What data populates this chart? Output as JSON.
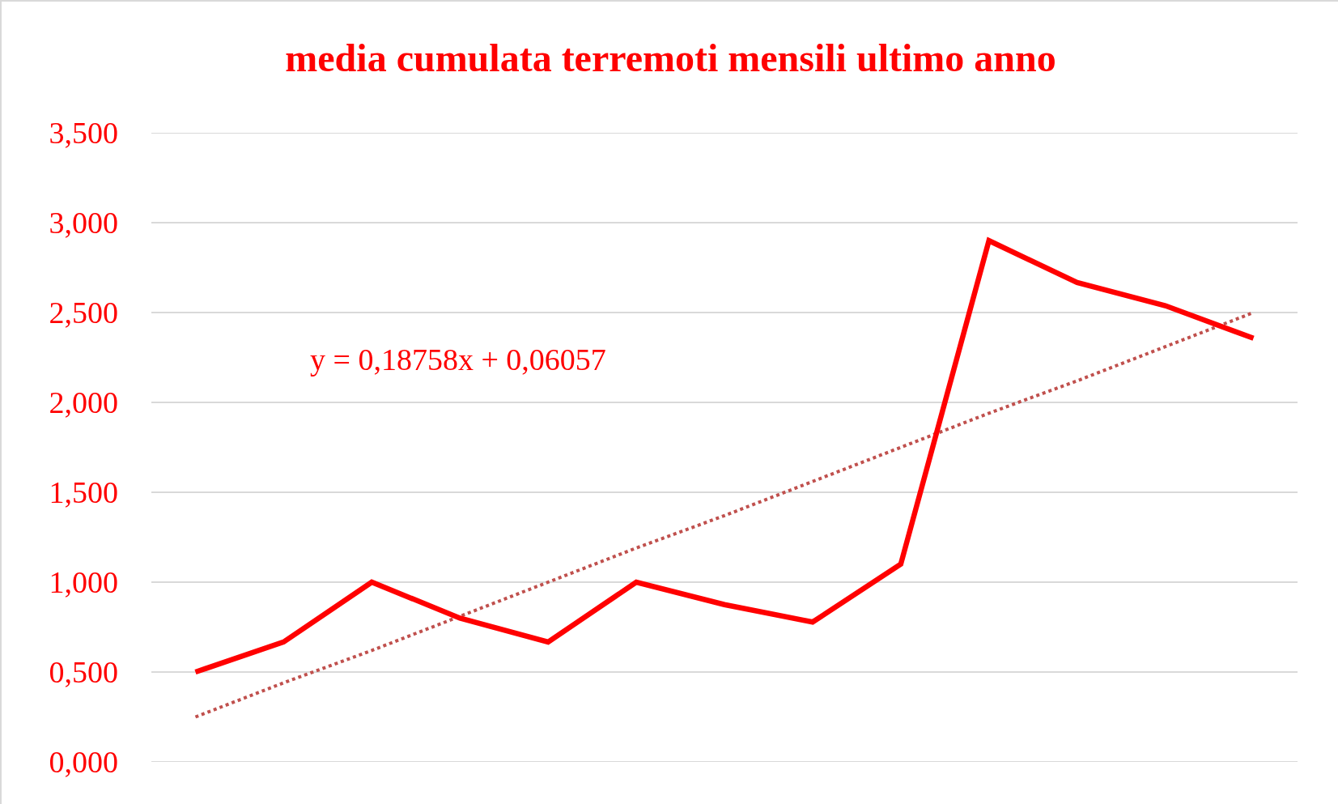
{
  "chart_data": {
    "type": "line",
    "title": "media cumulata terremoti mensili ultimo anno",
    "categories": [
      null,
      null,
      null,
      null,
      null,
      null,
      null,
      null,
      null,
      null,
      null,
      null,
      null
    ],
    "series": [
      {
        "color": "#ff0000",
        "values": [
          0.5,
          0.667,
          1.0,
          0.8,
          0.667,
          1.0,
          0.875,
          0.778,
          1.1,
          2.9,
          2.667,
          2.538,
          2.357
        ],
        "line_style": "solid"
      },
      {
        "type": "line",
        "color": "#c0504d",
        "values": [
          0.25,
          0.44,
          0.62,
          0.81,
          1.0,
          1.19,
          1.37,
          1.56,
          1.75,
          1.94,
          2.12,
          2.31,
          2.5
        ],
        "line_style": "dotted"
      }
    ],
    "ylim": [
      0,
      3.5
    ],
    "yticks": [
      {
        "value": 0,
        "label": "0,000"
      },
      {
        "value": 0.5,
        "label": "0,500"
      },
      {
        "value": 1,
        "label": "1,000"
      },
      {
        "value": 1.5,
        "label": "1,500"
      },
      {
        "value": 2,
        "label": "2,000"
      },
      {
        "value": 2.5,
        "label": "2,500"
      },
      {
        "value": 3,
        "label": "3,000"
      },
      {
        "value": 3.5,
        "label": "3,500"
      }
    ],
    "annotations": [
      "y = 0,18758x + 0,06057"
    ],
    "grid": "y",
    "marker": "none",
    "tick_labels": "y"
  }
}
